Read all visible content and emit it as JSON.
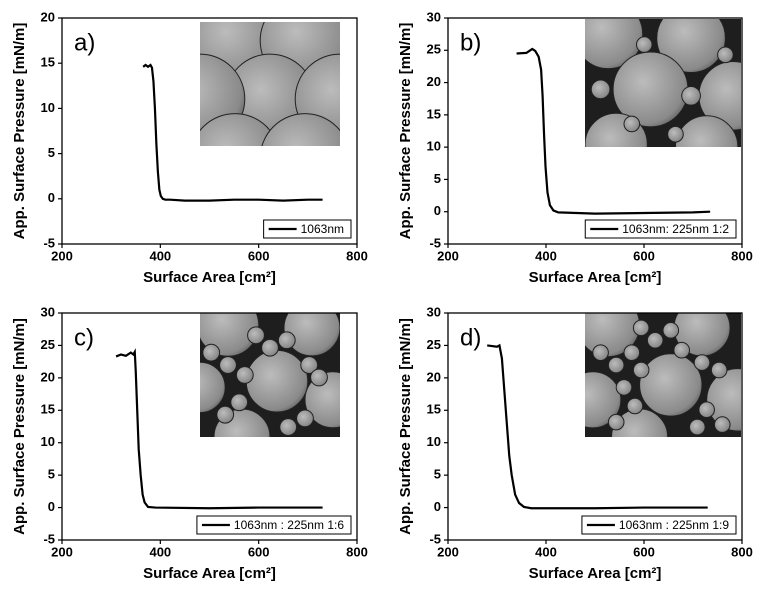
{
  "chart_data": [
    {
      "type": "line",
      "label": "a)",
      "xlabel": "Surface Area [cm²]",
      "ylabel": "App. Surface Pressure [mN/m]",
      "x": [
        365,
        370,
        375,
        380,
        383,
        386,
        389,
        392,
        395,
        398,
        401,
        405,
        410,
        420,
        450,
        500,
        550,
        600,
        650,
        700,
        730
      ],
      "series": [
        {
          "name": "1063nm",
          "color": "#000000",
          "values": [
            14.6,
            14.8,
            14.6,
            14.8,
            14.5,
            13,
            10,
            6,
            3,
            1,
            0.3,
            0,
            -0.1,
            -0.1,
            -0.2,
            -0.2,
            -0.1,
            -0.1,
            -0.2,
            -0.1,
            -0.1
          ]
        }
      ],
      "xlim": [
        200,
        800
      ],
      "xticks": [
        200,
        400,
        600,
        800
      ],
      "ylim": [
        -5,
        20
      ],
      "yticks": [
        -5,
        0,
        5,
        10,
        15,
        20
      ],
      "legend": "lower right"
    },
    {
      "type": "line",
      "label": "b)",
      "xlabel": "Surface Area [cm²]",
      "ylabel": "App. Surface Pressure [mN/m]",
      "x": [
        340,
        360,
        372,
        378,
        385,
        390,
        393,
        396,
        399,
        403,
        408,
        415,
        425,
        500,
        600,
        700,
        735
      ],
      "series": [
        {
          "name": "1063nm: 225nm 1:2",
          "color": "#000000",
          "values": [
            24.5,
            24.6,
            25.2,
            24.9,
            24,
            22,
            18,
            12,
            7,
            3,
            1,
            0.2,
            -0.1,
            -0.3,
            -0.2,
            -0.1,
            0
          ]
        }
      ],
      "xlim": [
        200,
        800
      ],
      "xticks": [
        200,
        400,
        600,
        800
      ],
      "ylim": [
        -5,
        30
      ],
      "yticks": [
        -5,
        0,
        5,
        10,
        15,
        20,
        25,
        30
      ],
      "legend": "lower right"
    },
    {
      "type": "line",
      "label": "c)",
      "xlabel": "Surface Area [cm²]",
      "ylabel": "App. Surface Pressure [mN/m]",
      "x": [
        310,
        320,
        330,
        340,
        345,
        348,
        350,
        353,
        356,
        360,
        364,
        368,
        375,
        390,
        500,
        600,
        730
      ],
      "series": [
        {
          "name": "1063nm : 225nm 1:6",
          "color": "#000000",
          "values": [
            23.3,
            23.6,
            23.4,
            23.9,
            23.6,
            24,
            21,
            15,
            9,
            5,
            2,
            0.8,
            0.1,
            0,
            -0.1,
            0,
            0
          ]
        }
      ],
      "xlim": [
        200,
        800
      ],
      "xticks": [
        200,
        400,
        600,
        800
      ],
      "ylim": [
        -5,
        30
      ],
      "yticks": [
        -5,
        0,
        5,
        10,
        15,
        20,
        25,
        30
      ],
      "legend": "lower right"
    },
    {
      "type": "line",
      "label": "d)",
      "xlabel": "Surface Area [cm²]",
      "ylabel": "App. Surface Pressure [mN/m]",
      "x": [
        280,
        300,
        305,
        310,
        315,
        320,
        325,
        330,
        337,
        345,
        355,
        370,
        500,
        600,
        730
      ],
      "series": [
        {
          "name": "1063nm : 225nm 1:9",
          "color": "#000000",
          "values": [
            25,
            24.8,
            25,
            23,
            18,
            13,
            8,
            5,
            2,
            0.7,
            0.1,
            -0.1,
            -0.1,
            0,
            0
          ]
        }
      ],
      "xlim": [
        200,
        800
      ],
      "xticks": [
        200,
        400,
        600,
        800
      ],
      "ylim": [
        -5,
        30
      ],
      "yticks": [
        -5,
        0,
        5,
        10,
        15,
        20,
        25,
        30
      ],
      "legend": "lower right"
    }
  ]
}
